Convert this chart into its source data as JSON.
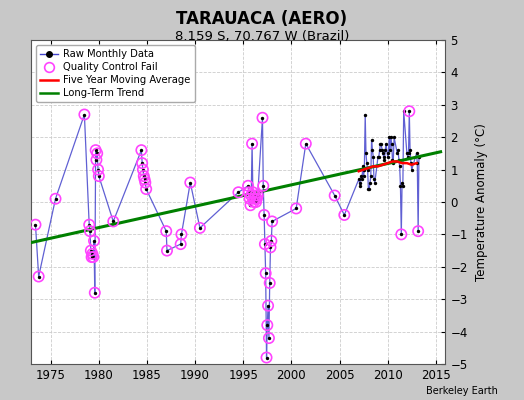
{
  "title": "TARAUACA (AERO)",
  "subtitle": "8.159 S, 70.767 W (Brazil)",
  "ylabel": "Temperature Anomaly (°C)",
  "credit": "Berkeley Earth",
  "xlim": [
    1973,
    2016
  ],
  "ylim": [
    -5,
    5
  ],
  "xticks": [
    1975,
    1980,
    1985,
    1990,
    1995,
    2000,
    2005,
    2010,
    2015
  ],
  "yticks": [
    -5,
    -4,
    -3,
    -2,
    -1,
    0,
    1,
    2,
    3,
    4,
    5
  ],
  "fig_bg_color": "#c8c8c8",
  "plot_bg_color": "#ffffff",
  "raw_color": "#4444cc",
  "qc_color": "#ff44ff",
  "mavg_color": "red",
  "trend_color": "green",
  "raw_monthly_data": [
    [
      1973.42,
      -0.7
    ],
    [
      1973.75,
      -2.3
    ],
    [
      1975.5,
      0.1
    ],
    [
      1978.5,
      2.7
    ],
    [
      1979.0,
      -0.7
    ],
    [
      1979.08,
      -0.9
    ],
    [
      1979.17,
      -1.5
    ],
    [
      1979.25,
      -1.7
    ],
    [
      1979.33,
      -1.6
    ],
    [
      1979.42,
      -1.7
    ],
    [
      1979.5,
      -1.2
    ],
    [
      1979.58,
      -2.8
    ],
    [
      1979.67,
      1.6
    ],
    [
      1979.75,
      1.3
    ],
    [
      1979.83,
      1.5
    ],
    [
      1979.92,
      1.0
    ],
    [
      1980.0,
      0.8
    ],
    [
      1981.5,
      -0.6
    ],
    [
      1984.42,
      1.6
    ],
    [
      1984.5,
      1.2
    ],
    [
      1984.58,
      1.0
    ],
    [
      1984.67,
      0.8
    ],
    [
      1984.75,
      0.7
    ],
    [
      1984.83,
      0.6
    ],
    [
      1984.92,
      0.4
    ],
    [
      1987.0,
      -0.9
    ],
    [
      1987.08,
      -1.5
    ],
    [
      1988.5,
      -1.3
    ],
    [
      1988.58,
      -1.0
    ],
    [
      1989.5,
      0.6
    ],
    [
      1990.5,
      -0.8
    ],
    [
      1994.5,
      0.3
    ],
    [
      1995.5,
      0.5
    ],
    [
      1995.58,
      0.3
    ],
    [
      1995.67,
      0.1
    ],
    [
      1995.75,
      -0.1
    ],
    [
      1995.83,
      0.2
    ],
    [
      1995.92,
      1.8
    ],
    [
      1996.0,
      0.3
    ],
    [
      1996.08,
      0.0
    ],
    [
      1996.17,
      0.1
    ],
    [
      1996.25,
      0.2
    ],
    [
      1996.33,
      0.0
    ],
    [
      1996.42,
      0.1
    ],
    [
      1996.5,
      0.2
    ],
    [
      1997.0,
      2.6
    ],
    [
      1997.08,
      0.5
    ],
    [
      1997.17,
      -0.4
    ],
    [
      1997.25,
      -1.3
    ],
    [
      1997.33,
      -2.2
    ],
    [
      1997.42,
      -4.8
    ],
    [
      1997.5,
      -3.8
    ],
    [
      1997.58,
      -3.2
    ],
    [
      1997.67,
      -4.2
    ],
    [
      1997.75,
      -2.5
    ],
    [
      1997.83,
      -1.4
    ],
    [
      1997.92,
      -1.2
    ],
    [
      1998.0,
      -0.6
    ],
    [
      2000.5,
      -0.2
    ],
    [
      2001.5,
      1.8
    ],
    [
      2004.5,
      0.2
    ],
    [
      2005.5,
      -0.4
    ],
    [
      2007.0,
      0.7
    ],
    [
      2007.08,
      0.6
    ],
    [
      2007.17,
      0.5
    ],
    [
      2007.25,
      0.8
    ],
    [
      2007.33,
      0.7
    ],
    [
      2007.42,
      1.1
    ],
    [
      2007.5,
      0.8
    ],
    [
      2007.58,
      1.0
    ],
    [
      2007.67,
      2.7
    ],
    [
      2007.75,
      1.5
    ],
    [
      2007.83,
      1.2
    ],
    [
      2007.92,
      1.0
    ],
    [
      2008.0,
      0.4
    ],
    [
      2008.08,
      0.4
    ],
    [
      2008.17,
      0.6
    ],
    [
      2008.25,
      0.8
    ],
    [
      2008.33,
      1.9
    ],
    [
      2008.42,
      1.6
    ],
    [
      2008.5,
      1.4
    ],
    [
      2008.58,
      0.7
    ],
    [
      2008.67,
      0.6
    ],
    [
      2009.0,
      1.4
    ],
    [
      2009.08,
      1.4
    ],
    [
      2009.17,
      1.6
    ],
    [
      2009.25,
      1.8
    ],
    [
      2009.33,
      1.8
    ],
    [
      2009.42,
      1.6
    ],
    [
      2009.5,
      1.5
    ],
    [
      2009.58,
      1.4
    ],
    [
      2009.67,
      1.3
    ],
    [
      2009.75,
      1.6
    ],
    [
      2009.83,
      1.8
    ],
    [
      2010.0,
      1.4
    ],
    [
      2010.08,
      1.5
    ],
    [
      2010.17,
      2.0
    ],
    [
      2010.25,
      1.6
    ],
    [
      2010.33,
      2.0
    ],
    [
      2010.42,
      1.8
    ],
    [
      2010.5,
      1.3
    ],
    [
      2010.58,
      1.2
    ],
    [
      2010.67,
      2.0
    ],
    [
      2011.0,
      1.5
    ],
    [
      2011.08,
      1.6
    ],
    [
      2011.17,
      1.3
    ],
    [
      2011.25,
      1.1
    ],
    [
      2011.33,
      0.5
    ],
    [
      2011.42,
      -1.0
    ],
    [
      2011.5,
      0.6
    ],
    [
      2011.58,
      0.5
    ],
    [
      2011.67,
      2.8
    ],
    [
      2012.0,
      1.5
    ],
    [
      2012.08,
      1.4
    ],
    [
      2012.17,
      1.5
    ],
    [
      2012.25,
      2.8
    ],
    [
      2012.33,
      1.6
    ],
    [
      2012.42,
      1.2
    ],
    [
      2012.5,
      1.0
    ],
    [
      2013.0,
      1.5
    ],
    [
      2013.08,
      1.2
    ],
    [
      2013.17,
      -0.9
    ],
    [
      2013.25,
      1.4
    ]
  ],
  "qc_fail_data": [
    [
      1973.42,
      -0.7
    ],
    [
      1973.75,
      -2.3
    ],
    [
      1975.5,
      0.1
    ],
    [
      1978.5,
      2.7
    ],
    [
      1979.0,
      -0.7
    ],
    [
      1979.08,
      -0.9
    ],
    [
      1979.17,
      -1.5
    ],
    [
      1979.25,
      -1.7
    ],
    [
      1979.33,
      -1.6
    ],
    [
      1979.42,
      -1.7
    ],
    [
      1979.5,
      -1.2
    ],
    [
      1979.58,
      -2.8
    ],
    [
      1979.67,
      1.6
    ],
    [
      1979.75,
      1.3
    ],
    [
      1979.83,
      1.5
    ],
    [
      1979.92,
      1.0
    ],
    [
      1980.0,
      0.8
    ],
    [
      1981.5,
      -0.6
    ],
    [
      1984.42,
      1.6
    ],
    [
      1984.5,
      1.2
    ],
    [
      1984.58,
      1.0
    ],
    [
      1984.67,
      0.8
    ],
    [
      1984.75,
      0.7
    ],
    [
      1984.83,
      0.6
    ],
    [
      1984.92,
      0.4
    ],
    [
      1987.0,
      -0.9
    ],
    [
      1987.08,
      -1.5
    ],
    [
      1988.5,
      -1.3
    ],
    [
      1988.58,
      -1.0
    ],
    [
      1989.5,
      0.6
    ],
    [
      1990.5,
      -0.8
    ],
    [
      1994.5,
      0.3
    ],
    [
      1995.5,
      0.5
    ],
    [
      1995.58,
      0.3
    ],
    [
      1995.67,
      0.1
    ],
    [
      1995.75,
      -0.1
    ],
    [
      1995.83,
      0.2
    ],
    [
      1995.92,
      1.8
    ],
    [
      1996.0,
      0.3
    ],
    [
      1996.08,
      0.0
    ],
    [
      1996.17,
      0.1
    ],
    [
      1996.25,
      0.2
    ],
    [
      1996.33,
      0.0
    ],
    [
      1996.42,
      0.1
    ],
    [
      1996.5,
      0.2
    ],
    [
      1997.0,
      2.6
    ],
    [
      1997.08,
      0.5
    ],
    [
      1997.17,
      -0.4
    ],
    [
      1997.25,
      -1.3
    ],
    [
      1997.33,
      -2.2
    ],
    [
      1997.42,
      -4.8
    ],
    [
      1997.5,
      -3.8
    ],
    [
      1997.58,
      -3.2
    ],
    [
      1997.67,
      -4.2
    ],
    [
      1997.75,
      -2.5
    ],
    [
      1997.83,
      -1.4
    ],
    [
      1997.92,
      -1.2
    ],
    [
      1998.0,
      -0.6
    ],
    [
      2000.5,
      -0.2
    ],
    [
      2001.5,
      1.8
    ],
    [
      2004.5,
      0.2
    ],
    [
      2005.5,
      -0.4
    ],
    [
      2011.42,
      -1.0
    ],
    [
      2012.25,
      2.8
    ],
    [
      2013.17,
      -0.9
    ]
  ],
  "trend_x": [
    1973,
    2015.5
  ],
  "trend_y": [
    -1.25,
    1.55
  ],
  "mavg_x": [
    2007.0,
    2007.5,
    2008.0,
    2008.5,
    2009.0,
    2009.5,
    2010.0,
    2010.5,
    2011.0,
    2011.5,
    2012.0,
    2012.5,
    2013.0
  ],
  "mavg_y": [
    0.95,
    1.0,
    1.05,
    1.1,
    1.1,
    1.15,
    1.2,
    1.25,
    1.25,
    1.2,
    1.2,
    1.15,
    1.2
  ]
}
